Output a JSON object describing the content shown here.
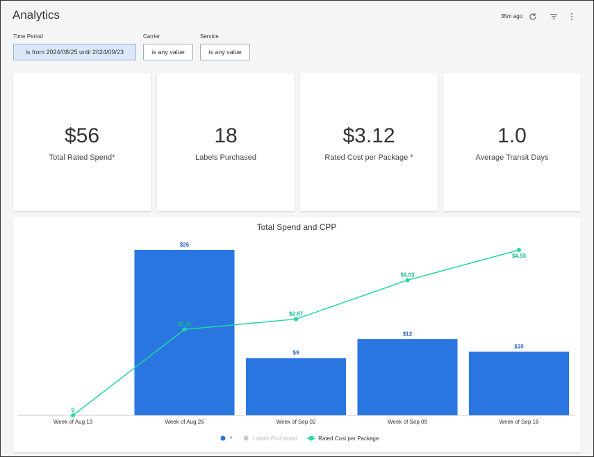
{
  "header": {
    "title": "Analytics",
    "updated": "35m ago"
  },
  "filters": [
    {
      "label": "Time Period",
      "value": "is from 2024/08/25 until 2024/09/23"
    },
    {
      "label": "Carrier",
      "value": "is any value"
    },
    {
      "label": "Service",
      "value": "is any value"
    }
  ],
  "kpis": [
    {
      "value": "$56",
      "label": "Total Rated Spend*"
    },
    {
      "value": "18",
      "label": "Labels Purchased"
    },
    {
      "value": "$3.12",
      "label": "Rated Cost per Package *"
    },
    {
      "value": "1.0",
      "label": "Average Transit Days"
    }
  ],
  "chart_data": {
    "type": "bar-line",
    "title": "Total Spend and CPP",
    "categories": [
      "Week of Aug 19",
      "Week of Aug 26",
      "Week of Sep 02",
      "Week of Sep 09",
      "Week of Sep 16"
    ],
    "series": [
      {
        "name": "*",
        "type": "bar",
        "color": "#2a76e0",
        "values": [
          null,
          26,
          9,
          12,
          10
        ],
        "value_labels": [
          null,
          "$26",
          "$9",
          "$12",
          "$10"
        ]
      },
      {
        "name": "Labels Purchased",
        "color": "#c8c8c8",
        "hidden": true
      },
      {
        "name": "Rated Cost per Package",
        "type": "line",
        "axis": "y2",
        "color": "#1ed8a8",
        "values": [
          0,
          2.56,
          2.87,
          4.03,
          4.93
        ],
        "value_labels": [
          "0",
          "$2.56",
          "$2.87",
          "$4.03",
          "$4.93"
        ]
      }
    ]
  }
}
